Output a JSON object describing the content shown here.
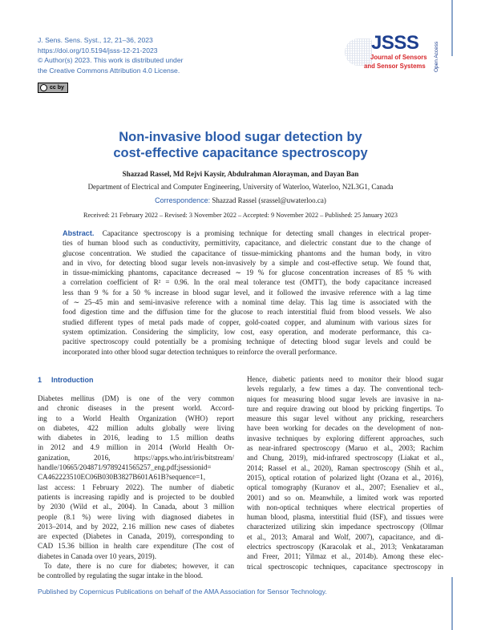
{
  "header": {
    "journal_ref": "J. Sens. Sens. Syst., 12, 21–36, 2023",
    "doi": "https://doi.org/10.5194/jsss-12-21-2023",
    "copyright": "© Author(s) 2023. This work is distributed under",
    "license": "the Creative Commons Attribution 4.0 License.",
    "cc_badge": "cc by"
  },
  "logo": {
    "abbr": "JSSS",
    "line1": "Journal of Sensors",
    "line2": "and Sensor Systems",
    "open_access": "Open Access"
  },
  "colors": {
    "accent": "#2a5caa",
    "logo_red": "#d6262a",
    "logo_blue": "#1d3f8f"
  },
  "title": {
    "line1": "Non-invasive blood sugar detection by",
    "line2": "cost-effective capacitance spectroscopy"
  },
  "authors": "Shazzad Rassel, Md Rejvi Kaysir, Abdulrahman Alorayman, and Dayan Ban",
  "affiliation": "Department of Electrical and Computer Engineering, University of Waterloo, Waterloo, N2L3G1, Canada",
  "correspondence": {
    "label": "Correspondence:",
    "text": "Shazzad Rassel (srassel@uwaterloo.ca)"
  },
  "dates": "Received: 21 February 2022 – Revised: 3 November 2022 – Accepted: 9 November 2022 – Published: 25 January 2023",
  "abstract": {
    "label": "Abstract.",
    "lines": [
      "Capacitance spectroscopy is a promising technique for detecting small changes in electrical proper-",
      "ties of human blood such as conductivity, permittivity, capacitance, and dielectric constant due to the change of",
      "glucose concentration. We studied the capacitance of tissue-mimicking phantoms and the human body, in vitro",
      "and in vivo, for detecting blood sugar levels non-invasively by a simple and cost-effective setup. We found that,",
      "in tissue-mimicking phantoms, capacitance decreased ∼ 19 % for glucose concentration increases of 85 % with",
      "a correlation coefficient of R² = 0.96. In the oral meal tolerance test (OMTT), the body capacitance increased",
      "less than 9 % for a 50 % increase in blood sugar level, and it followed the invasive reference with a lag time",
      "of ∼ 25–45 min and semi-invasive reference with a nominal time delay. This lag time is associated with the",
      "food digestion time and the diffusion time for the glucose to reach interstitial fluid from blood vessels. We also",
      "studied different types of metal pads made of copper, gold-coated copper, and aluminum with various sizes for",
      "system optimization. Considering the simplicity, low cost, easy operation, and moderate performance, this ca-",
      "pacitive spectroscopy could potentially be a promising technique of detecting blood sugar levels and could be",
      "incorporated into other blood sugar detection techniques to reinforce the overall performance."
    ]
  },
  "section": {
    "number": "1",
    "title": "Introduction"
  },
  "left_column": [
    "Diabetes mellitus (DM) is one of the very common",
    "and chronic diseases in the present world. Accord-",
    "ing to a World Health Organization (WHO) report",
    "on diabetes, 422 million adults globally were living",
    "with diabetes in 2016, leading to 1.5 million deaths",
    "in 2012 and 4.9 million in 2014 (World Health Or-",
    "ganization, 2016, https://apps.who.int/iris/bitstream/",
    "handle/10665/204871/9789241565257_eng.pdf;jsessionid=",
    "CA462223510EC06B030B3827B601A61B?sequence=1,",
    "last access: 1 February 2022). The number of diabetic",
    "patients is increasing rapidly and is projected to be doubled",
    "by 2030 (Wild et al., 2004). In Canada, about 3 million",
    "people (8.1 %) were living with diagnosed diabetes in",
    "2013–2014, and by 2022, 2.16 million new cases of diabetes",
    "are expected (Diabetes in Canada, 2019), corresponding to",
    "CAD 15.36 billion in health care expenditure (The cost of",
    "diabetes in Canada over 10 years, 2019).",
    "To date, there is no cure for diabetes; however, it can",
    "be controlled by regulating the sugar intake in the blood."
  ],
  "right_column": [
    "Hence, diabetic patients need to monitor their blood sugar",
    "levels regularly, a few times a day. The conventional tech-",
    "niques for measuring blood sugar levels are invasive in na-",
    "ture and require drawing out blood by pricking fingertips. To",
    "measure this sugar level without any pricking, researchers",
    "have been working for decades on the development of non-",
    "invasive techniques by exploring different approaches, such",
    "as near-infrared spectroscopy (Maruo et al., 2003; Rachim",
    "and Chung, 2019), mid-infrared spectroscopy (Liakat et al.,",
    "2014; Rassel et al., 2020), Raman spectroscopy (Shih et al.,",
    "2015), optical rotation of polarized light (Ozana et al., 2016),",
    "optical tomography (Kuranov et al., 2007; Esenaliev et al.,",
    "2001) and so on. Meanwhile, a limited work was reported",
    "with non-optical techniques where electrical properties of",
    "human blood, plasma, interstitial fluid (ISF), and tissues were",
    "characterized utilizing skin impedance spectroscopy (Ollmar",
    "et al., 2013; Amaral and Wolf, 2007), capacitance, and di-",
    "electrics spectroscopy (Karacolak et al., 2013; Venkataraman",
    "and Freer, 2011; Yilmaz et al., 2014b). Among these elec-",
    "trical spectroscopic techniques, capacitance spectroscopy in"
  ],
  "footer": "Published by Copernicus Publications on behalf of the AMA Association for Sensor Technology."
}
